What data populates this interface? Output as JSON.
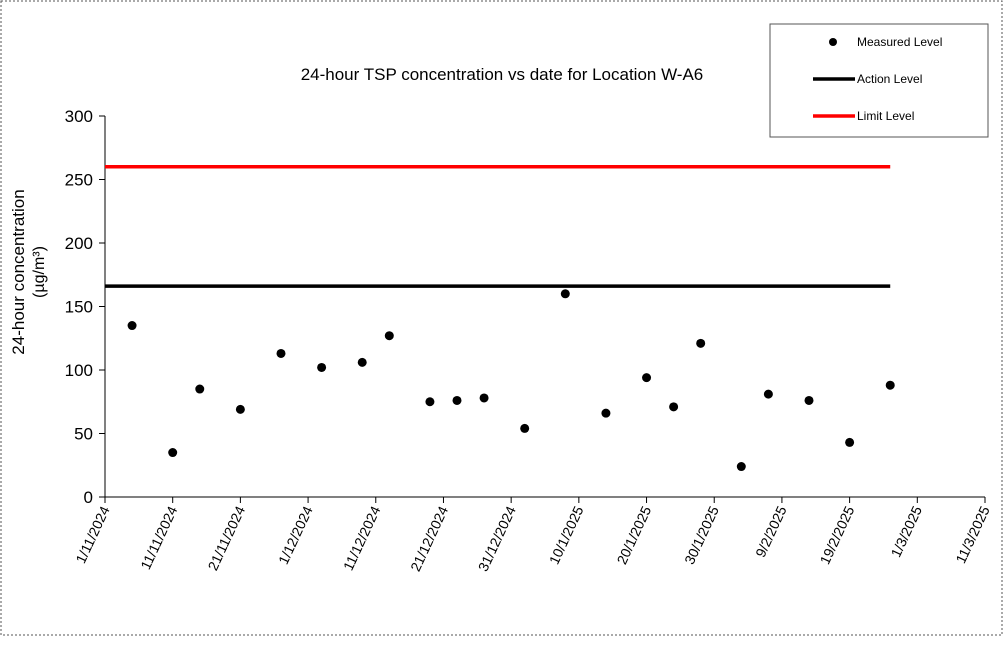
{
  "chart_data": {
    "type": "scatter",
    "title": "24-hour TSP concentration vs date for Location W-A6",
    "y_label": [
      "24-hour concentration",
      "(µg/m³)"
    ],
    "xlim": [
      "1/11/2024",
      "11/3/2025"
    ],
    "xticks": [
      "1/11/2024",
      "11/11/2024",
      "21/11/2024",
      "1/12/2024",
      "11/12/2024",
      "21/12/2024",
      "31/12/2024",
      "10/1/2025",
      "20/1/2025",
      "30/1/2025",
      "9/2/2025",
      "19/2/2025",
      "1/3/2025",
      "11/3/2025"
    ],
    "ylim": [
      0,
      300
    ],
    "yticks": [
      0,
      50,
      100,
      150,
      200,
      250,
      300
    ],
    "series": [
      {
        "name": "Measured Level",
        "color": "#000000",
        "kind": "points",
        "x": [
          "5/11/2024",
          "11/11/2024",
          "15/11/2024",
          "21/11/2024",
          "27/11/2024",
          "3/12/2024",
          "9/12/2024",
          "13/12/2024",
          "19/12/2024",
          "23/12/2024",
          "27/12/2024",
          "2/1/2025",
          "8/1/2025",
          "14/1/2025",
          "20/1/2025",
          "24/1/2025",
          "28/1/2025",
          "3/2/2025",
          "7/2/2025",
          "13/2/2025",
          "19/2/2025",
          "25/2/2025"
        ],
        "values": [
          135,
          35,
          85,
          69,
          113,
          102,
          106,
          127,
          75,
          76,
          78,
          54,
          160,
          66,
          94,
          71,
          121,
          24,
          81,
          76,
          43,
          88
        ]
      },
      {
        "name": "Action Level",
        "color": "#000000",
        "kind": "line",
        "x": [
          "1/11/2024",
          "25/2/2025"
        ],
        "values": [
          166,
          166
        ]
      },
      {
        "name": "Limit Level",
        "color": "#ff0000",
        "kind": "line",
        "x": [
          "1/11/2024",
          "25/2/2025"
        ],
        "values": [
          260,
          260
        ]
      }
    ]
  }
}
